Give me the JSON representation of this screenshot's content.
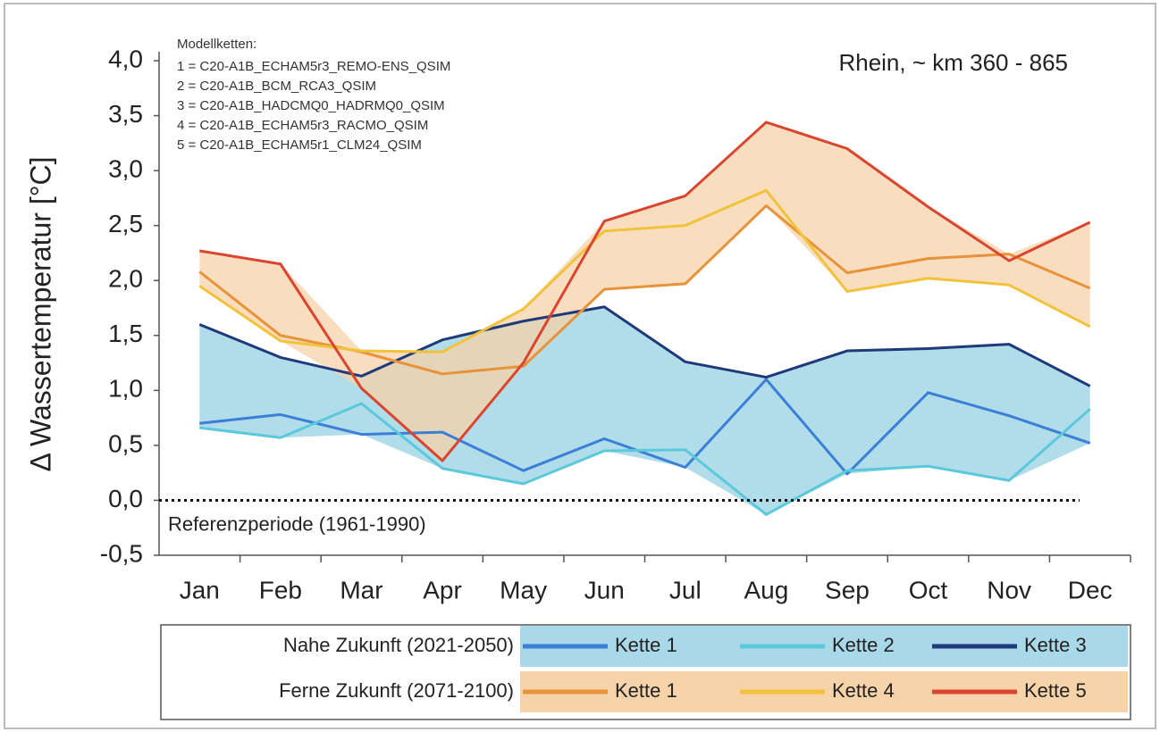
{
  "chart_data": {
    "type": "line",
    "title": "Rhein, ~ km 360 - 865",
    "y_label": "Δ Wassertemperatur  [°C]",
    "notes_title": "Modellketten:",
    "notes": [
      "1 = C20-A1B_ECHAM5r3_REMO-ENS_QSIM",
      "2 = C20-A1B_BCM_RCA3_QSIM",
      "3 = C20-A1B_HADCMQ0_HADRMQ0_QSIM",
      "4 = C20-A1B_ECHAM5r3_RACMO_QSIM",
      "5 = C20-A1B_ECHAM5r1_CLM24_QSIM"
    ],
    "reference_line": {
      "value": 0,
      "label": "Referenzperiode (1961-1990)"
    },
    "categories": [
      "Jan",
      "Feb",
      "Mar",
      "Apr",
      "May",
      "Jun",
      "Jul",
      "Aug",
      "Sep",
      "Oct",
      "Nov",
      "Dec"
    ],
    "ylim": [
      -0.5,
      4.0
    ],
    "yticks": [
      {
        "value": -0.5,
        "label": "-0,5"
      },
      {
        "value": 0,
        "label": "0,0"
      },
      {
        "value": 0.5,
        "label": "0,5"
      },
      {
        "value": 1.0,
        "label": "1,0"
      },
      {
        "value": 1.5,
        "label": "1,5"
      },
      {
        "value": 2.0,
        "label": "2,0"
      },
      {
        "value": 2.5,
        "label": "2,5"
      },
      {
        "value": 3.0,
        "label": "3,0"
      },
      {
        "value": 3.5,
        "label": "3,5"
      },
      {
        "value": 4.0,
        "label": "4,0"
      }
    ],
    "groups": [
      {
        "name": "Nahe Zukunft (2021-2050)",
        "fill": "#a9d8e8"
      },
      {
        "name": "Ferne Zukunft (2071-2100)",
        "fill": "#f6d3a8"
      }
    ],
    "series": [
      {
        "name": "Kette 1",
        "group": 0,
        "color": "#3b7fd6",
        "values": [
          0.7,
          0.78,
          0.6,
          0.62,
          0.27,
          0.56,
          0.3,
          1.1,
          0.24,
          0.98,
          0.77,
          0.52
        ]
      },
      {
        "name": "Kette 2",
        "group": 0,
        "color": "#5cc8dc",
        "values": [
          0.66,
          0.57,
          0.88,
          0.29,
          0.15,
          0.45,
          0.46,
          -0.13,
          0.27,
          0.31,
          0.18,
          0.83
        ]
      },
      {
        "name": "Kette 3",
        "group": 0,
        "color": "#1f3a7a",
        "values": [
          1.6,
          1.3,
          1.13,
          1.46,
          1.63,
          1.76,
          1.26,
          1.12,
          1.36,
          1.38,
          1.42,
          1.04
        ]
      },
      {
        "name": "Kette 1",
        "group": 1,
        "color": "#e8923a",
        "values": [
          2.08,
          1.5,
          1.35,
          1.15,
          1.22,
          1.92,
          1.97,
          2.68,
          2.07,
          2.2,
          2.24,
          1.93
        ]
      },
      {
        "name": "Kette 4",
        "group": 1,
        "color": "#f2c23a",
        "values": [
          1.95,
          1.45,
          1.36,
          1.35,
          1.74,
          2.45,
          2.5,
          2.82,
          1.9,
          2.02,
          1.96,
          1.58
        ]
      },
      {
        "name": "Kette 5",
        "group": 1,
        "color": "#d9452e",
        "values": [
          2.27,
          2.15,
          1.02,
          0.36,
          1.25,
          2.54,
          2.77,
          3.44,
          3.2,
          2.67,
          2.18,
          2.53
        ]
      }
    ]
  }
}
